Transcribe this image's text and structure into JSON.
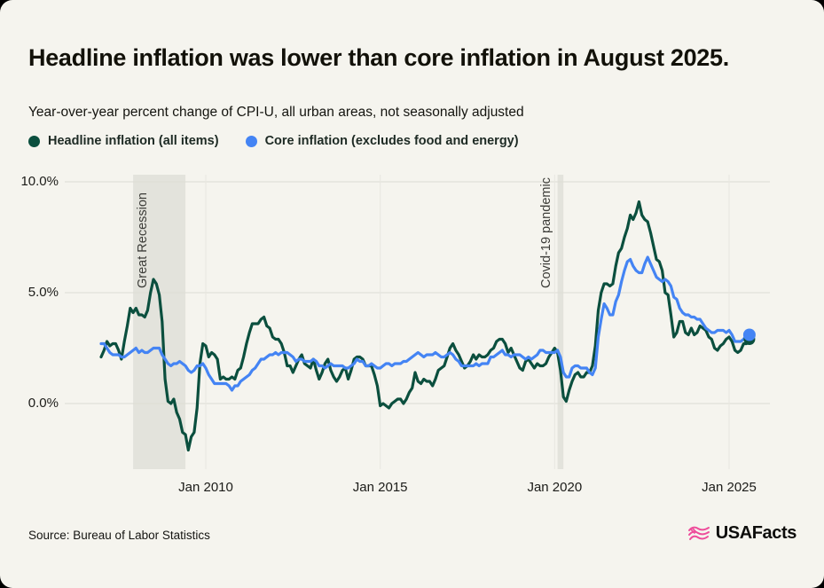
{
  "header": {
    "title": "Headline inflation was lower than core inflation in August 2025.",
    "subtitle": "Year-over-year percent change of CPI-U, all urban areas, not seasonally adjusted"
  },
  "legend": [
    {
      "label": "Headline inflation (all items)",
      "color": "#0b4f3e"
    },
    {
      "label": "Core inflation (excludes food and energy)",
      "color": "#4484f4"
    }
  ],
  "footer": {
    "source": "Source: Bureau of Labor Statistics",
    "logo_text": "USAFacts",
    "logo_color": "#ee4d9b"
  },
  "colors": {
    "background": "#f5f4ee",
    "band": "#e3e3dc",
    "h_gridline": "#dcdcd4",
    "v_gridline": "#e7e6e0"
  },
  "chart_data": {
    "type": "line",
    "frequency": "monthly",
    "x_start": "2007-01",
    "x_end": "2025-08",
    "ylim": [
      -3.2,
      10.3
    ],
    "grid": true,
    "y_ticks": [
      {
        "value": 0,
        "label": "0.0%"
      },
      {
        "value": 5,
        "label": "5.0%"
      },
      {
        "value": 10,
        "label": "10.0%"
      }
    ],
    "x_ticks": [
      {
        "date": "2010-01",
        "label": "Jan 2010"
      },
      {
        "date": "2015-01",
        "label": "Jan 2015"
      },
      {
        "date": "2020-01",
        "label": "Jan 2020"
      },
      {
        "date": "2025-01",
        "label": "Jan 2025"
      }
    ],
    "annotations": [
      {
        "label": "Great Recession",
        "start": "2007-12",
        "end": "2009-06"
      },
      {
        "label": "Covid-19 pandemic",
        "start": "2020-02",
        "end": "2020-04"
      }
    ],
    "series": [
      {
        "name": "Headline inflation (all items)",
        "color": "#0b4f3e",
        "end_dot": true,
        "values": [
          2.1,
          2.4,
          2.8,
          2.6,
          2.7,
          2.7,
          2.4,
          2.0,
          2.8,
          3.5,
          4.3,
          4.1,
          4.3,
          4.0,
          4.0,
          3.9,
          4.2,
          5.0,
          5.6,
          5.4,
          4.9,
          3.7,
          1.1,
          0.1,
          0.0,
          0.2,
          -0.4,
          -0.7,
          -1.3,
          -1.4,
          -2.1,
          -1.5,
          -1.3,
          -0.2,
          1.8,
          2.7,
          2.6,
          2.1,
          2.3,
          2.2,
          2.0,
          1.1,
          1.2,
          1.1,
          1.1,
          1.2,
          1.1,
          1.5,
          1.6,
          2.1,
          2.7,
          3.2,
          3.6,
          3.6,
          3.6,
          3.8,
          3.9,
          3.5,
          3.4,
          3.0,
          2.9,
          2.9,
          2.7,
          2.3,
          1.7,
          1.7,
          1.4,
          1.7,
          2.0,
          2.2,
          1.8,
          1.7,
          1.6,
          2.0,
          1.5,
          1.1,
          1.4,
          1.8,
          2.0,
          1.5,
          1.2,
          1.0,
          1.2,
          1.5,
          1.6,
          1.1,
          1.5,
          2.0,
          2.1,
          2.1,
          2.0,
          1.7,
          1.7,
          1.7,
          1.3,
          0.8,
          -0.1,
          0.0,
          -0.1,
          -0.2,
          0.0,
          0.1,
          0.2,
          0.2,
          0.0,
          0.2,
          0.5,
          0.7,
          1.4,
          1.0,
          0.9,
          1.1,
          1.0,
          1.0,
          0.8,
          1.1,
          1.5,
          1.6,
          1.7,
          2.1,
          2.5,
          2.7,
          2.4,
          2.2,
          1.9,
          1.6,
          1.7,
          1.9,
          2.2,
          2.0,
          2.2,
          2.1,
          2.1,
          2.2,
          2.4,
          2.5,
          2.8,
          2.9,
          2.9,
          2.7,
          2.3,
          2.5,
          2.2,
          1.9,
          1.6,
          1.5,
          1.9,
          2.0,
          1.8,
          1.6,
          1.8,
          1.7,
          1.7,
          1.8,
          2.1,
          2.3,
          2.5,
          2.3,
          1.5,
          0.3,
          0.1,
          0.6,
          1.0,
          1.3,
          1.4,
          1.2,
          1.2,
          1.4,
          1.4,
          1.7,
          2.6,
          4.2,
          5.0,
          5.4,
          5.4,
          5.3,
          5.4,
          6.2,
          6.8,
          7.0,
          7.5,
          7.9,
          8.5,
          8.3,
          8.6,
          9.1,
          8.5,
          8.3,
          8.2,
          7.7,
          7.1,
          6.5,
          6.4,
          6.0,
          5.0,
          4.9,
          4.0,
          3.0,
          3.2,
          3.7,
          3.7,
          3.2,
          3.1,
          3.4,
          3.1,
          3.2,
          3.5,
          3.4,
          3.3,
          3.0,
          2.9,
          2.5,
          2.4,
          2.6,
          2.7,
          2.9,
          3.0,
          2.8,
          2.4,
          2.3,
          2.4,
          2.7,
          2.7,
          2.9
        ]
      },
      {
        "name": "Core inflation (excludes food and energy)",
        "color": "#4484f4",
        "end_dot": true,
        "values": [
          2.7,
          2.7,
          2.5,
          2.3,
          2.2,
          2.2,
          2.2,
          2.1,
          2.1,
          2.2,
          2.3,
          2.4,
          2.5,
          2.3,
          2.4,
          2.3,
          2.3,
          2.4,
          2.5,
          2.5,
          2.5,
          2.2,
          2.0,
          1.8,
          1.7,
          1.8,
          1.8,
          1.9,
          1.8,
          1.7,
          1.5,
          1.4,
          1.5,
          1.7,
          1.7,
          1.8,
          1.6,
          1.3,
          1.1,
          0.9,
          0.9,
          0.9,
          0.9,
          0.9,
          0.8,
          0.6,
          0.8,
          0.8,
          1.0,
          1.1,
          1.2,
          1.3,
          1.5,
          1.6,
          1.8,
          2.0,
          2.0,
          2.1,
          2.2,
          2.2,
          2.3,
          2.2,
          2.3,
          2.3,
          2.3,
          2.2,
          2.1,
          1.9,
          2.0,
          2.0,
          1.9,
          1.9,
          1.9,
          2.0,
          1.9,
          1.7,
          1.7,
          1.6,
          1.7,
          1.8,
          1.7,
          1.7,
          1.7,
          1.7,
          1.6,
          1.6,
          1.7,
          1.8,
          2.0,
          1.9,
          1.9,
          1.7,
          1.7,
          1.8,
          1.7,
          1.6,
          1.6,
          1.7,
          1.8,
          1.8,
          1.7,
          1.8,
          1.8,
          1.8,
          1.9,
          1.9,
          2.0,
          2.1,
          2.2,
          2.3,
          2.2,
          2.1,
          2.2,
          2.2,
          2.2,
          2.3,
          2.2,
          2.1,
          2.1,
          2.2,
          2.3,
          2.2,
          2.0,
          1.9,
          1.7,
          1.7,
          1.7,
          1.7,
          1.7,
          1.8,
          1.7,
          1.8,
          1.8,
          1.8,
          2.1,
          2.1,
          2.2,
          2.3,
          2.4,
          2.2,
          2.2,
          2.1,
          2.2,
          2.2,
          2.2,
          2.1,
          2.0,
          2.1,
          2.0,
          2.1,
          2.2,
          2.4,
          2.4,
          2.3,
          2.3,
          2.3,
          2.3,
          2.4,
          2.1,
          1.4,
          1.2,
          1.2,
          1.6,
          1.7,
          1.7,
          1.6,
          1.6,
          1.6,
          1.4,
          1.3,
          1.6,
          3.0,
          3.8,
          4.5,
          4.3,
          4.0,
          4.0,
          4.6,
          4.9,
          5.5,
          6.0,
          6.4,
          6.5,
          6.2,
          6.0,
          5.9,
          5.9,
          6.3,
          6.6,
          6.3,
          6.0,
          5.7,
          5.6,
          5.5,
          5.6,
          5.5,
          5.3,
          4.8,
          4.7,
          4.3,
          4.1,
          4.0,
          4.0,
          3.9,
          3.9,
          3.8,
          3.8,
          3.6,
          3.4,
          3.3,
          3.2,
          3.2,
          3.3,
          3.3,
          3.3,
          3.2,
          3.3,
          3.1,
          2.8,
          2.8,
          2.8,
          2.9,
          3.1,
          3.1
        ]
      }
    ]
  }
}
